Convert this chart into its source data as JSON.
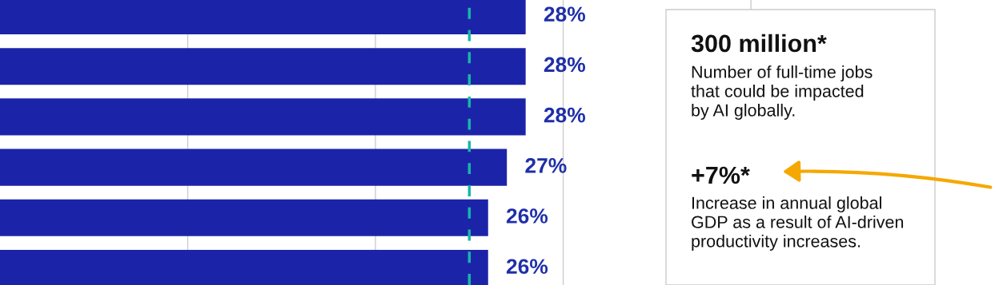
{
  "chart_data": {
    "type": "bar",
    "orientation": "horizontal",
    "categories": [
      null,
      null,
      null,
      null,
      null,
      null
    ],
    "values": [
      28,
      28,
      28,
      27,
      26,
      26
    ],
    "value_labels": [
      "28%",
      "28%",
      "28%",
      "27%",
      "26%",
      "26%"
    ],
    "color": "#1b24a8",
    "xlim": [
      0,
      53
    ],
    "xticks": [
      {
        "value": 10,
        "label": null
      },
      {
        "value": 20,
        "label": null
      },
      {
        "value": 30,
        "label": null
      },
      {
        "value": 40,
        "label": null
      }
    ],
    "grid": "x",
    "ref_lines": [
      {
        "axis": "x",
        "value": 25,
        "color": "#19b5a9",
        "line_style": "dashed"
      }
    ],
    "annotations": [
      "300 million*",
      "Number of full-time jobs\nthat could be impacted\nby AI globally.",
      "+7%*",
      "Increase in annual global\nGDP as a result of AI-driven\nproductivity increases."
    ]
  }
}
